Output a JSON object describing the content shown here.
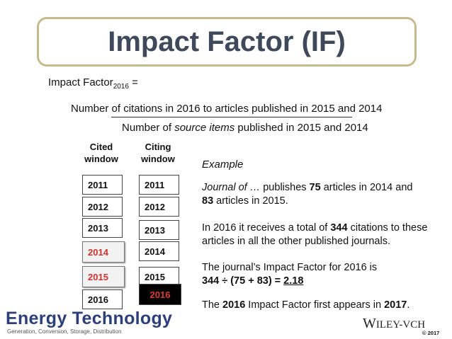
{
  "title": "Impact Factor (IF)",
  "formula": {
    "label_main": "Impact Factor",
    "label_sub": "2016",
    "label_eq": " =",
    "numerator": "Number of citations in 2016 to articles published in 2015 and 2014",
    "denominator_pre": "Number of ",
    "denominator_italic": "source items",
    "denominator_post": " published in 2015 and 2014"
  },
  "cited_window": {
    "heading_line1": "Cited",
    "heading_line2": "window",
    "years": [
      "2011",
      "2012",
      "2013",
      "2014",
      "2015",
      "2016"
    ]
  },
  "citing_window": {
    "heading_line1": "Citing",
    "heading_line2": "window",
    "years": [
      "2011",
      "2012",
      "2013",
      "2014",
      "2015",
      "2016"
    ]
  },
  "example": {
    "heading": "Example",
    "p1_journal": "Journal of …",
    "p1_a": " publishes ",
    "p1_num1": "75",
    "p1_b": " articles in 2014 and",
    "p1_num2": "83",
    "p1_c": " articles in 2015.",
    "p2_a": "In 2016 it receives a total of ",
    "p2_num": "344",
    "p2_b": " citations to these articles in all the other published journals.",
    "p3_a": "The journal’s Impact Factor for 2016 is",
    "p3_formula": "344 ÷ (75 + 83) = ",
    "p3_result": "2.18",
    "p4_a": "The ",
    "p4_year": "2016",
    "p4_b": " Impact Factor first appears in ",
    "p4_year2": "2017",
    "p4_c": "."
  },
  "logos": {
    "energy_technology": "Energy Technology",
    "energy_technology_sub": "Generation, Conversion, Storage, Distribution",
    "wiley_big": "W",
    "wiley_rest": "ILEY",
    "wiley_suffix": "-VCH",
    "copyright": "© 2017"
  },
  "colors": {
    "title": "#3e4a5c",
    "title_border": "#c9b98a",
    "highlight_red": "#d0312d",
    "logo_blue": "#2b3f7a"
  }
}
